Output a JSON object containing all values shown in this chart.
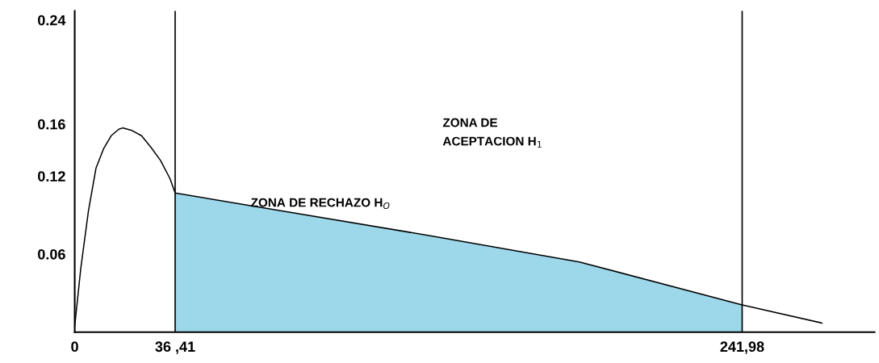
{
  "chart_data": {
    "type": "line",
    "x": [
      0,
      2.2,
      4.96,
      7.71,
      10.46,
      13.22,
      15.97,
      17.35,
      20.79,
      24.23,
      27.67,
      31.11,
      34.55,
      36.41,
      75.59,
      129.26,
      182.93,
      241.98,
      270.9
    ],
    "series": [
      {
        "color": "#000000",
        "values": [
          0.0045,
          0.049,
          0.093,
          0.126,
          0.141,
          0.151,
          0.156,
          0.157,
          0.155,
          0.151,
          0.142,
          0.132,
          0.118,
          0.107,
          0.093,
          0.074,
          0.054,
          0.021,
          0.007
        ]
      },
      {
        "type": "area",
        "color": "#9dd8ea",
        "x": [
          36.41,
          75.59,
          129.26,
          182.93,
          241.98
        ],
        "values": [
          0.107,
          0.093,
          0.074,
          0.054,
          0.021
        ]
      }
    ],
    "xlim": [
      0,
      290
    ],
    "ylim": [
      0,
      0.247
    ],
    "xticks": [
      0,
      {
        "value": 36.41,
        "label": "36 ,41"
      },
      {
        "value": 241.98,
        "label": "241,98"
      }
    ],
    "yticks": [
      0.06,
      0.12,
      0.16,
      0.24
    ],
    "ref_lines": [
      {
        "axis": "x",
        "value": 36.41,
        "color": "#000000"
      },
      {
        "axis": "x",
        "value": 241.98,
        "color": "#000000"
      }
    ],
    "annotations": [
      "ZONA DE RECHAZO H$_{O}$",
      "ZONA DE\nACEPTACION H$_{1}$"
    ],
    "grid": false,
    "legend": false
  }
}
